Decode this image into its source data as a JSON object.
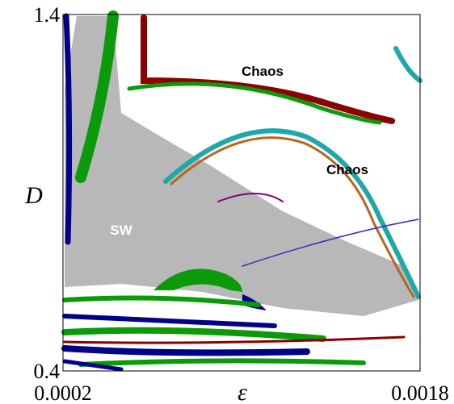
{
  "chart_data": {
    "type": "region-map",
    "xlabel": "ε",
    "ylabel": "D",
    "xlim": [
      0.0002,
      0.0018
    ],
    "ylim": [
      0.4,
      1.4
    ],
    "xticks": [
      0.0002,
      0.0018
    ],
    "yticks": [
      0.4,
      1.4
    ],
    "annotations": [
      "Chaos",
      "Chaos",
      "SW"
    ]
  }
}
